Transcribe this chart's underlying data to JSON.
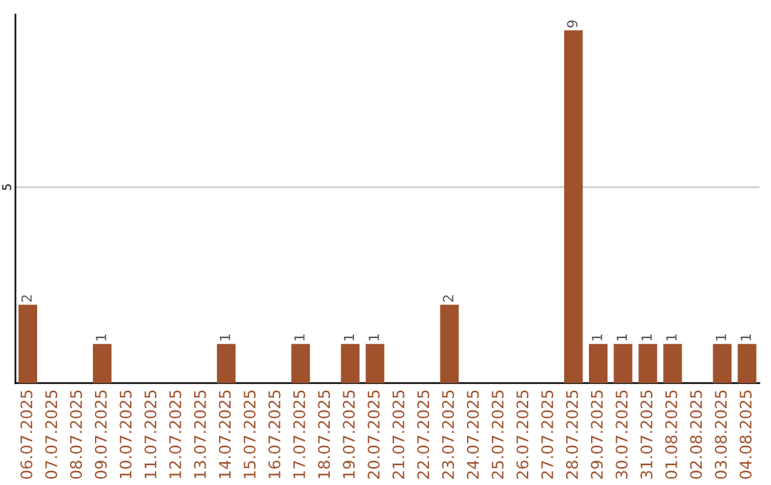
{
  "chart_data": {
    "type": "bar",
    "categories": [
      "06.07.2025",
      "07.07.2025",
      "08.07.2025",
      "09.07.2025",
      "10.07.2025",
      "11.07.2025",
      "12.07.2025",
      "13.07.2025",
      "14.07.2025",
      "15.07.2025",
      "16.07.2025",
      "17.07.2025",
      "18.07.2025",
      "19.07.2025",
      "20.07.2025",
      "21.07.2025",
      "22.07.2025",
      "23.07.2025",
      "24.07.2025",
      "25.07.2025",
      "26.07.2025",
      "27.07.2025",
      "28.07.2025",
      "29.07.2025",
      "30.07.2025",
      "31.07.2025",
      "01.08.2025",
      "02.08.2025",
      "03.08.2025",
      "04.08.2025"
    ],
    "values": [
      2,
      0,
      0,
      1,
      0,
      0,
      0,
      0,
      1,
      0,
      0,
      1,
      0,
      1,
      1,
      0,
      0,
      2,
      0,
      0,
      0,
      0,
      9,
      1,
      1,
      1,
      1,
      0,
      1,
      1
    ],
    "color": "#a0522d",
    "value_labels": [
      "2",
      null,
      null,
      "1",
      null,
      null,
      null,
      null,
      "1",
      null,
      null,
      "1",
      null,
      "1",
      "1",
      null,
      null,
      "2",
      null,
      null,
      null,
      null,
      "9",
      "1",
      "1",
      "1",
      "1",
      null,
      "1",
      "1"
    ],
    "ylim": [
      0,
      9.4
    ],
    "yticks": [
      5
    ],
    "grid": "y"
  }
}
